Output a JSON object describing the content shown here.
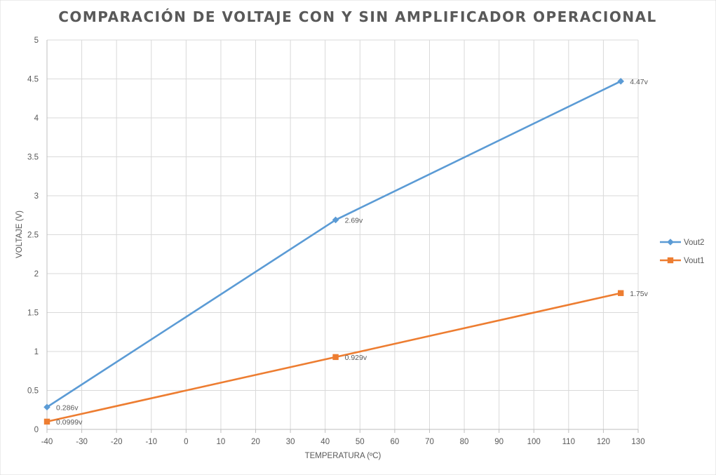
{
  "chart_data": {
    "type": "line",
    "title": "COMPARACIÓN DE VOLTAJE CON Y SIN AMPLIFICADOR OPERACIONAL",
    "xlabel": "TEMPERATURA (ºC)",
    "ylabel": "VOLTAJE (V)",
    "xlim": [
      -40,
      130
    ],
    "ylim": [
      0,
      5
    ],
    "x_ticks": [
      -40,
      -30,
      -20,
      -10,
      0,
      10,
      20,
      30,
      40,
      50,
      60,
      70,
      80,
      90,
      100,
      110,
      120,
      130
    ],
    "y_ticks": [
      0,
      0.5,
      1,
      1.5,
      2,
      2.5,
      3,
      3.5,
      4,
      4.5,
      5
    ],
    "grid": true,
    "legend_position": "right",
    "series": [
      {
        "name": "Vout2",
        "color": "#5B9BD5",
        "marker": "diamond",
        "x": [
          -40,
          43,
          125
        ],
        "y": [
          0.286,
          2.69,
          4.47
        ],
        "labels": [
          "0.286v",
          "2.69v",
          "4.47v"
        ]
      },
      {
        "name": "Vout1",
        "color": "#ED7D31",
        "marker": "square",
        "x": [
          -40,
          43,
          125
        ],
        "y": [
          0.0999,
          0.929,
          1.75
        ],
        "labels": [
          "0.0999v",
          "0.929v",
          "1.75v"
        ]
      }
    ]
  }
}
